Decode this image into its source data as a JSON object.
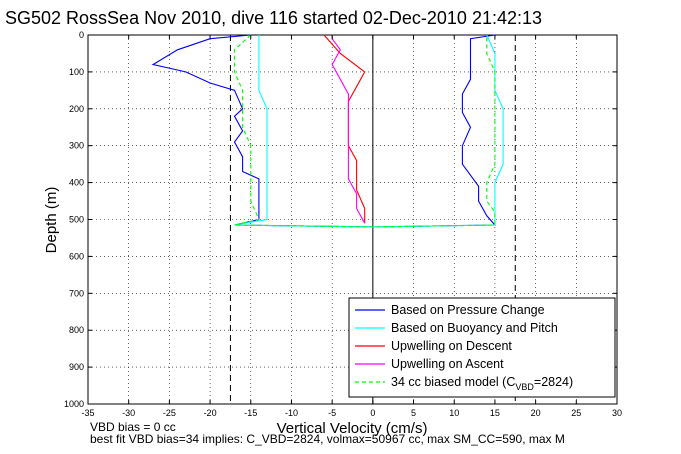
{
  "chart_data": {
    "type": "line",
    "title": "SG502 RossSea Nov 2010, dive 116 started 02-Dec-2010 21:42:13",
    "xlabel": "Vertical Velocity (cm/s)",
    "ylabel": "Depth (m)",
    "xlim": [
      -35,
      30
    ],
    "ylim": [
      1000,
      0
    ],
    "y_reversed": true,
    "grid": true,
    "legend_position": "bottom-right",
    "xticks": [
      -35,
      -30,
      -25,
      -20,
      -15,
      -10,
      -5,
      0,
      5,
      10,
      15,
      20,
      25,
      30
    ],
    "yticks": [
      0,
      100,
      200,
      300,
      400,
      500,
      600,
      700,
      800,
      900,
      1000
    ],
    "reference_lines": [
      {
        "axis": "x",
        "value": -17.5,
        "style": "dashed",
        "color": "#000000"
      },
      {
        "axis": "x",
        "value": 17.5,
        "style": "dashed",
        "color": "#000000"
      },
      {
        "axis": "x",
        "value": 0,
        "style": "solid",
        "color": "#000000"
      }
    ],
    "series": [
      {
        "name": "Based on Pressure Change",
        "color": "#0000ff",
        "points": [
          [
            -15,
            0
          ],
          [
            -20,
            10
          ],
          [
            -24,
            40
          ],
          [
            -27,
            80
          ],
          [
            -23,
            100
          ],
          [
            -20,
            130
          ],
          [
            -17,
            150
          ],
          [
            -16,
            200
          ],
          [
            -17,
            220
          ],
          [
            -16,
            260
          ],
          [
            -17,
            290
          ],
          [
            -16,
            330
          ],
          [
            -16,
            370
          ],
          [
            -14,
            390
          ],
          [
            -14,
            440
          ],
          [
            -14,
            480
          ],
          [
            -14,
            500
          ],
          [
            -17,
            515
          ],
          [
            0,
            520
          ],
          [
            15,
            515
          ],
          [
            14,
            490
          ],
          [
            13,
            450
          ],
          [
            13,
            410
          ],
          [
            12,
            380
          ],
          [
            11,
            350
          ],
          [
            11,
            300
          ],
          [
            12,
            250
          ],
          [
            11,
            210
          ],
          [
            11,
            160
          ],
          [
            12,
            120
          ],
          [
            12,
            80
          ],
          [
            12,
            50
          ],
          [
            12,
            10
          ],
          [
            15,
            0
          ]
        ]
      },
      {
        "name": "Based on Buoyancy and Pitch",
        "color": "#00ffff",
        "points": [
          [
            -14,
            0
          ],
          [
            -14,
            50
          ],
          [
            -14,
            100
          ],
          [
            -14,
            150
          ],
          [
            -13,
            200
          ],
          [
            -13,
            250
          ],
          [
            -13,
            300
          ],
          [
            -13,
            350
          ],
          [
            -13,
            400
          ],
          [
            -13,
            450
          ],
          [
            -13,
            500
          ],
          [
            -17,
            515
          ],
          [
            0,
            520
          ],
          [
            15,
            515
          ],
          [
            15,
            480
          ],
          [
            15,
            450
          ],
          [
            15,
            400
          ],
          [
            16,
            350
          ],
          [
            16,
            300
          ],
          [
            16,
            250
          ],
          [
            16,
            200
          ],
          [
            15,
            150
          ],
          [
            15,
            100
          ],
          [
            15,
            50
          ],
          [
            14,
            0
          ]
        ]
      },
      {
        "name": "Upwelling on Descent",
        "color": "#ff0000",
        "points": [
          [
            -6,
            0
          ],
          [
            -4,
            50
          ],
          [
            -1,
            100
          ],
          [
            -2,
            140
          ],
          [
            -3,
            180
          ],
          [
            -3,
            220
          ],
          [
            -3,
            260
          ],
          [
            -3,
            300
          ],
          [
            -2,
            340
          ],
          [
            -2,
            380
          ],
          [
            -2,
            420
          ],
          [
            -1,
            470
          ],
          [
            -1,
            510
          ]
        ]
      },
      {
        "name": "Upwelling on Ascent",
        "color": "#ff00ff",
        "points": [
          [
            -1,
            510
          ],
          [
            -2,
            470
          ],
          [
            -2,
            430
          ],
          [
            -3,
            390
          ],
          [
            -3,
            350
          ],
          [
            -3,
            300
          ],
          [
            -3,
            250
          ],
          [
            -3,
            200
          ],
          [
            -3,
            160
          ],
          [
            -4,
            120
          ],
          [
            -5,
            80
          ],
          [
            -4,
            40
          ],
          [
            -5,
            10
          ],
          [
            -5,
            0
          ]
        ]
      },
      {
        "name": "34 cc biased model (C_VBD=2824)",
        "color": "#00ff00",
        "dashed": true,
        "points": [
          [
            -15,
            0
          ],
          [
            -17,
            40
          ],
          [
            -17,
            100
          ],
          [
            -16,
            150
          ],
          [
            -16,
            200
          ],
          [
            -16,
            250
          ],
          [
            -15,
            300
          ],
          [
            -15,
            350
          ],
          [
            -15,
            400
          ],
          [
            -15,
            450
          ],
          [
            -14,
            500
          ],
          [
            -17,
            515
          ],
          [
            0,
            520
          ],
          [
            15,
            515
          ],
          [
            15,
            480
          ],
          [
            14,
            450
          ],
          [
            14,
            400
          ],
          [
            15,
            350
          ],
          [
            15,
            300
          ],
          [
            15,
            250
          ],
          [
            15,
            200
          ],
          [
            15,
            150
          ],
          [
            15,
            100
          ],
          [
            14,
            50
          ],
          [
            14,
            0
          ]
        ]
      }
    ],
    "legend": {
      "entries": [
        {
          "label": "Based on Pressure Change",
          "color": "#0000ff",
          "dashed": false
        },
        {
          "label": "Based on Buoyancy and Pitch",
          "color": "#00ffff",
          "dashed": false
        },
        {
          "label": "Upwelling on Descent",
          "color": "#ff0000",
          "dashed": false
        },
        {
          "label": "Upwelling on Ascent",
          "color": "#ff00ff",
          "dashed": false
        },
        {
          "label": "34 cc biased model (C",
          "sub": "VBD",
          "tail": "=2824)",
          "color": "#00ff00",
          "dashed": true
        }
      ]
    }
  },
  "notes": {
    "line1": "VBD bias = 0 cc",
    "line2": "best fit VBD bias=34 implies: C_VBD=2824, volmax=50967 cc, max SM_CC=590, max M"
  }
}
